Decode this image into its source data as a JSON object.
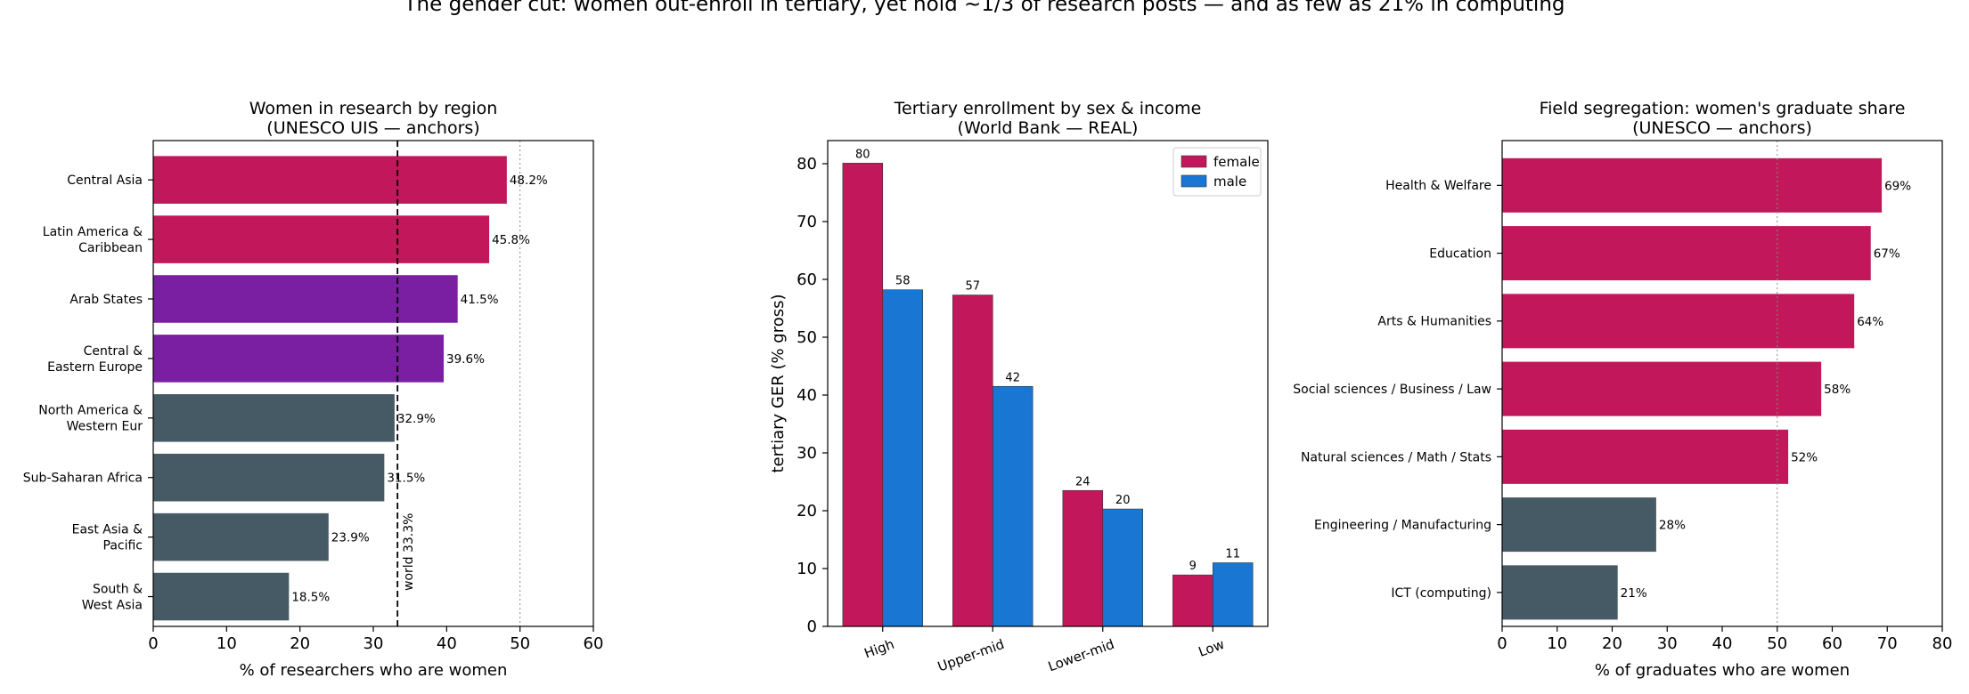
{
  "suptitle": "The gender cut: women out-enroll in tertiary, yet hold ~1/3 of research posts — and as few as 21% in computing",
  "colors": {
    "high": "#c2185b",
    "mid": "#7b1fa2",
    "low": "#455a64",
    "female": "#c2185b",
    "male": "#1976d2"
  },
  "chart_data": [
    {
      "type": "bar",
      "orientation": "horizontal",
      "title": "Women in research by region\n(UNESCO UIS — anchors)",
      "xlabel": "% of researchers who are women",
      "xlim": [
        0,
        60
      ],
      "xticks": [
        0,
        10,
        20,
        30,
        40,
        50,
        60
      ],
      "categories": [
        "Central Asia",
        "Latin America &\nCaribbean",
        "Arab States",
        "Central &\nEastern Europe",
        "North America &\nWestern Eur",
        "Sub-Saharan Africa",
        "East Asia &\nPacific",
        "South &\nWest Asia"
      ],
      "values": [
        48.2,
        45.8,
        41.5,
        39.6,
        32.9,
        31.5,
        23.9,
        18.5
      ],
      "value_labels": [
        "48.2%",
        "45.8%",
        "41.5%",
        "39.6%",
        "32.9%",
        "31.5%",
        "23.9%",
        "18.5%"
      ],
      "bar_colors": [
        "high",
        "high",
        "mid",
        "mid",
        "low",
        "low",
        "low",
        "low"
      ],
      "reference_line": {
        "value": 33.3,
        "label": "world 33.3%",
        "style": "dashed"
      },
      "parity_line": {
        "value": 50,
        "style": "dotted"
      }
    },
    {
      "type": "bar",
      "title": "Tertiary enrollment by sex & income\n(World Bank — REAL)",
      "ylabel": "tertiary GER (% gross)",
      "ylim": [
        0,
        84
      ],
      "yticks": [
        0,
        10,
        20,
        30,
        40,
        50,
        60,
        70,
        80
      ],
      "categories": [
        "High",
        "Upper-mid",
        "Lower-mid",
        "Low"
      ],
      "series": [
        {
          "name": "female",
          "values": [
            80.1,
            57.3,
            23.5,
            8.9
          ],
          "labels": [
            "80",
            "57",
            "24",
            "9"
          ]
        },
        {
          "name": "male",
          "values": [
            58.2,
            41.5,
            20.3,
            11.0
          ],
          "labels": [
            "58",
            "42",
            "20",
            "11"
          ]
        }
      ],
      "legend": "top-right"
    },
    {
      "type": "bar",
      "orientation": "horizontal",
      "title": "Field segregation: women's graduate share\n(UNESCO — anchors)",
      "xlabel": "% of graduates who are women",
      "xlim": [
        0,
        80
      ],
      "xticks": [
        0,
        10,
        20,
        30,
        40,
        50,
        60,
        70,
        80
      ],
      "categories": [
        "Health & Welfare",
        "Education",
        "Arts & Humanities",
        "Social sciences / Business / Law",
        "Natural sciences / Math / Stats",
        "Engineering / Manufacturing",
        "ICT (computing)"
      ],
      "values": [
        69,
        67,
        64,
        58,
        52,
        28,
        21
      ],
      "value_labels": [
        "69%",
        "67%",
        "64%",
        "58%",
        "52%",
        "28%",
        "21%"
      ],
      "bar_colors": [
        "high",
        "high",
        "high",
        "high",
        "high",
        "low",
        "low"
      ],
      "parity_line": {
        "value": 50,
        "style": "dotted"
      }
    }
  ]
}
